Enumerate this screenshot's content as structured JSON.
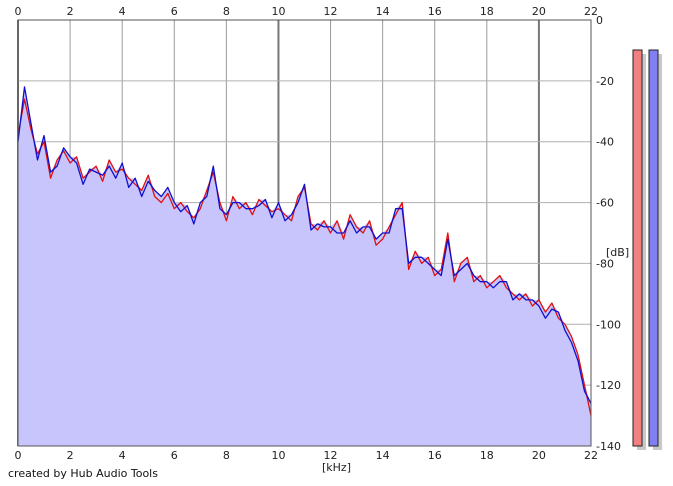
{
  "credit": "created by Hub Audio Tools",
  "chart_data": {
    "type": "line",
    "title": "",
    "xlabel": "[kHz]",
    "ylabel": "[dB]",
    "xlim": [
      0,
      22
    ],
    "ylim": [
      -140,
      0
    ],
    "x_ticks": [
      0,
      2,
      4,
      6,
      8,
      10,
      12,
      14,
      16,
      18,
      20,
      22
    ],
    "y_ticks": [
      0,
      -20,
      -40,
      -60,
      -80,
      -100,
      -120,
      -140
    ],
    "grid": true,
    "fill_color": "#c7c5fb",
    "series": [
      {
        "color": "#e01010",
        "x": [
          0.0,
          0.25,
          0.5,
          0.75,
          1.0,
          1.25,
          1.5,
          1.75,
          2.0,
          2.25,
          2.5,
          2.75,
          3.0,
          3.25,
          3.5,
          3.75,
          4.0,
          4.25,
          4.5,
          4.75,
          5.0,
          5.25,
          5.5,
          5.75,
          6.0,
          6.25,
          6.5,
          6.75,
          7.0,
          7.25,
          7.5,
          7.75,
          8.0,
          8.25,
          8.5,
          8.75,
          9.0,
          9.25,
          9.5,
          9.75,
          10.0,
          10.25,
          10.5,
          10.75,
          11.0,
          11.25,
          11.5,
          11.75,
          12.0,
          12.25,
          12.5,
          12.75,
          13.0,
          13.25,
          13.5,
          13.75,
          14.0,
          14.25,
          14.5,
          14.75,
          15.0,
          15.25,
          15.5,
          15.75,
          16.0,
          16.25,
          16.5,
          16.75,
          17.0,
          17.25,
          17.5,
          17.75,
          18.0,
          18.25,
          18.5,
          18.75,
          19.0,
          19.25,
          19.5,
          19.75,
          20.0,
          20.25,
          20.5,
          20.75,
          21.0,
          21.25,
          21.5,
          21.75,
          22.0
        ],
        "values": [
          -38,
          -26,
          -36,
          -44,
          -40,
          -52,
          -46,
          -43,
          -47,
          -45,
          -52,
          -50,
          -48,
          -53,
          -46,
          -50,
          -49,
          -52,
          -54,
          -56,
          -51,
          -58,
          -60,
          -57,
          -62,
          -60,
          -63,
          -65,
          -62,
          -56,
          -50,
          -60,
          -66,
          -58,
          -62,
          -60,
          -64,
          -59,
          -61,
          -63,
          -62,
          -64,
          -66,
          -58,
          -55,
          -67,
          -69,
          -66,
          -70,
          -66,
          -72,
          -64,
          -68,
          -70,
          -66,
          -74,
          -72,
          -68,
          -64,
          -60,
          -82,
          -76,
          -80,
          -78,
          -84,
          -82,
          -70,
          -86,
          -80,
          -78,
          -86,
          -84,
          -88,
          -86,
          -84,
          -88,
          -90,
          -92,
          -90,
          -94,
          -92,
          -96,
          -93,
          -98,
          -100,
          -104,
          -110,
          -120,
          -130
        ]
      },
      {
        "color": "#1010cc",
        "x": [
          0.0,
          0.25,
          0.5,
          0.75,
          1.0,
          1.25,
          1.5,
          1.75,
          2.0,
          2.25,
          2.5,
          2.75,
          3.0,
          3.25,
          3.5,
          3.75,
          4.0,
          4.25,
          4.5,
          4.75,
          5.0,
          5.25,
          5.5,
          5.75,
          6.0,
          6.25,
          6.5,
          6.75,
          7.0,
          7.25,
          7.5,
          7.75,
          8.0,
          8.25,
          8.5,
          8.75,
          9.0,
          9.25,
          9.5,
          9.75,
          10.0,
          10.25,
          10.5,
          10.75,
          11.0,
          11.25,
          11.5,
          11.75,
          12.0,
          12.25,
          12.5,
          12.75,
          13.0,
          13.25,
          13.5,
          13.75,
          14.0,
          14.25,
          14.5,
          14.75,
          15.0,
          15.25,
          15.5,
          15.75,
          16.0,
          16.25,
          16.5,
          16.75,
          17.0,
          17.25,
          17.5,
          17.75,
          18.0,
          18.25,
          18.5,
          18.75,
          19.0,
          19.25,
          19.5,
          19.75,
          20.0,
          20.25,
          20.5,
          20.75,
          21.0,
          21.25,
          21.5,
          21.75,
          22.0
        ],
        "values": [
          -40,
          -22,
          -34,
          -46,
          -38,
          -50,
          -48,
          -42,
          -45,
          -47,
          -54,
          -49,
          -50,
          -51,
          -48,
          -52,
          -47,
          -55,
          -52,
          -58,
          -53,
          -56,
          -58,
          -55,
          -60,
          -63,
          -61,
          -67,
          -60,
          -58,
          -48,
          -62,
          -64,
          -60,
          -60,
          -62,
          -62,
          -61,
          -59,
          -65,
          -60,
          -66,
          -64,
          -60,
          -54,
          -69,
          -67,
          -68,
          -68,
          -70,
          -70,
          -66,
          -70,
          -68,
          -68,
          -72,
          -70,
          -70,
          -62,
          -62,
          -80,
          -78,
          -78,
          -80,
          -82,
          -84,
          -72,
          -84,
          -82,
          -80,
          -84,
          -86,
          -86,
          -88,
          -86,
          -86,
          -92,
          -90,
          -92,
          -92,
          -94,
          -98,
          -95,
          -96,
          -102,
          -106,
          -112,
          -122,
          -126
        ]
      }
    ],
    "level_meters": [
      {
        "color": "#f28080",
        "level": 1.0
      },
      {
        "color": "#8080f2",
        "level": 1.0
      }
    ]
  }
}
